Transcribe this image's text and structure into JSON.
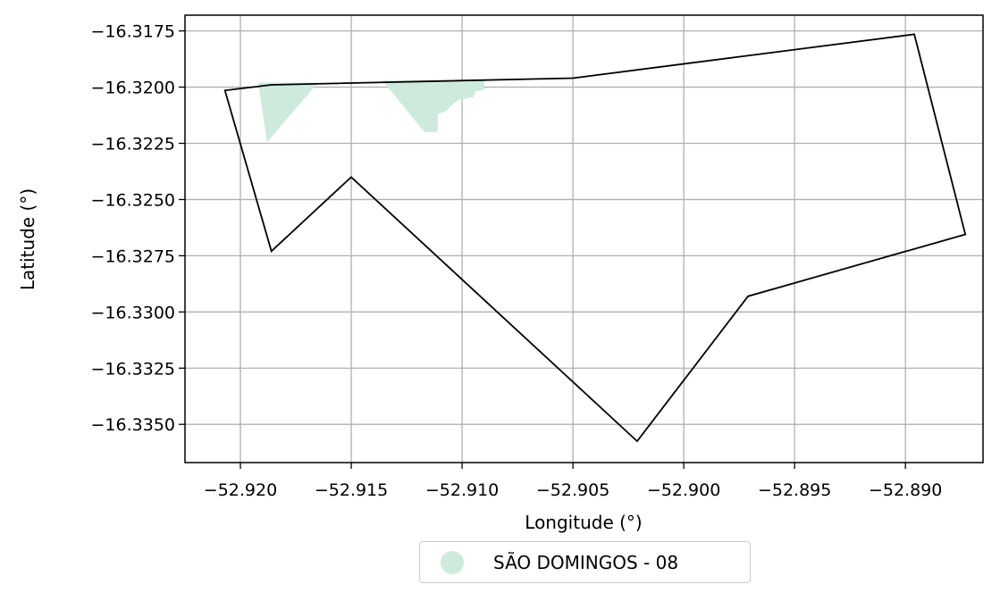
{
  "chart_data": {
    "type": "map",
    "title": "",
    "xlabel": "Longitude (°)",
    "ylabel": "Latitude (°)",
    "xlim": [
      -52.9225,
      -52.8865
    ],
    "ylim": [
      -16.3367,
      -16.3168
    ],
    "grid": true,
    "x_ticks": [
      {
        "value": -52.92,
        "label": "−52.920"
      },
      {
        "value": -52.915,
        "label": "−52.915"
      },
      {
        "value": -52.91,
        "label": "−52.910"
      },
      {
        "value": -52.905,
        "label": "−52.905"
      },
      {
        "value": -52.9,
        "label": "−52.900"
      },
      {
        "value": -52.895,
        "label": "−52.895"
      },
      {
        "value": -52.89,
        "label": "−52.890"
      }
    ],
    "y_ticks": [
      {
        "value": -16.3175,
        "label": "−16.3175"
      },
      {
        "value": -16.32,
        "label": "−16.3200"
      },
      {
        "value": -16.3225,
        "label": "−16.3225"
      },
      {
        "value": -16.325,
        "label": "−16.3250"
      },
      {
        "value": -16.3275,
        "label": "−16.3275"
      },
      {
        "value": -16.33,
        "label": "−16.3300"
      },
      {
        "value": -16.3325,
        "label": "−16.3325"
      },
      {
        "value": -16.335,
        "label": "−16.3350"
      }
    ],
    "boundary": {
      "color": "#000000",
      "coordinates": [
        [
          -52.9207,
          -16.32015
        ],
        [
          -52.9186,
          -16.3199
        ],
        [
          -52.905,
          -16.3196
        ],
        [
          -52.8896,
          -16.31765
        ],
        [
          -52.8873,
          -16.32655
        ],
        [
          -52.8971,
          -16.3293
        ],
        [
          -52.9021,
          -16.33575
        ],
        [
          -52.915,
          -16.324
        ],
        [
          -52.9186,
          -16.3273
        ],
        [
          -52.9207,
          -16.32015
        ]
      ]
    },
    "series": [
      {
        "name": "SÃO DOMINGOS - 08",
        "color": "#cdeadd",
        "polygons": [
          [
            [
              -52.9192,
              -16.3198
            ],
            [
              -52.9165,
              -16.3198
            ],
            [
              -52.9188,
              -16.32245
            ],
            [
              -52.9192,
              -16.3198
            ]
          ],
          [
            [
              -52.9136,
              -16.3197
            ],
            [
              -52.909,
              -16.3197
            ],
            [
              -52.909,
              -16.3201
            ],
            [
              -52.9094,
              -16.3202
            ],
            [
              -52.9095,
              -16.32045
            ],
            [
              -52.9101,
              -16.32055
            ],
            [
              -52.9104,
              -16.32075
            ],
            [
              -52.9107,
              -16.32105
            ],
            [
              -52.9111,
              -16.3212
            ],
            [
              -52.9111,
              -16.322
            ],
            [
              -52.9117,
              -16.322
            ],
            [
              -52.9136,
              -16.3197
            ]
          ]
        ]
      }
    ],
    "legend": {
      "position": "bottom-center"
    }
  }
}
